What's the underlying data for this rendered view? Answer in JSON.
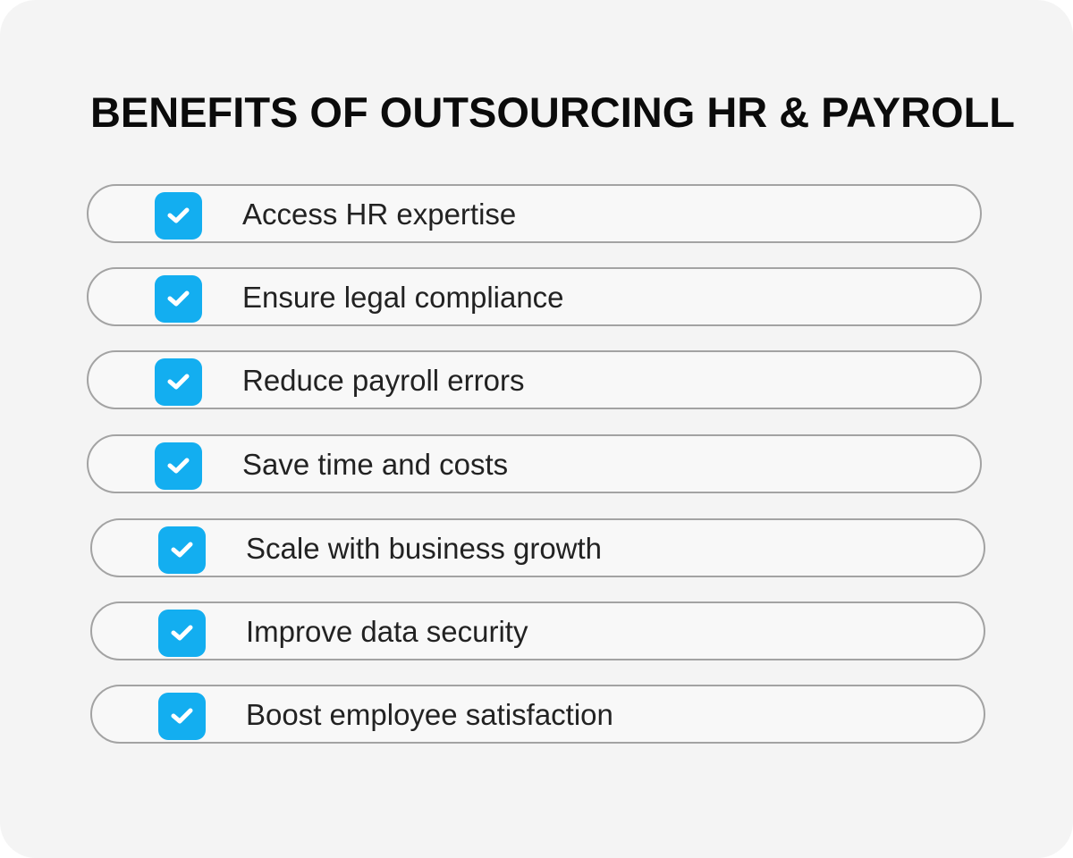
{
  "title": "BENEFITS OF OUTSOURCING HR & PAYROLL",
  "accent_color": "#13aef0",
  "items": [
    {
      "label": "Access HR expertise",
      "icon": "checkbox-checked-icon"
    },
    {
      "label": "Ensure legal compliance",
      "icon": "checkbox-checked-icon"
    },
    {
      "label": "Reduce payroll errors",
      "icon": "checkbox-checked-icon"
    },
    {
      "label": "Save time and costs",
      "icon": "checkbox-checked-icon"
    },
    {
      "label": "Scale with business growth",
      "icon": "checkbox-checked-icon"
    },
    {
      "label": "Improve data security",
      "icon": "checkbox-checked-icon"
    },
    {
      "label": "Boost employee satisfaction",
      "icon": "checkbox-checked-icon"
    }
  ]
}
